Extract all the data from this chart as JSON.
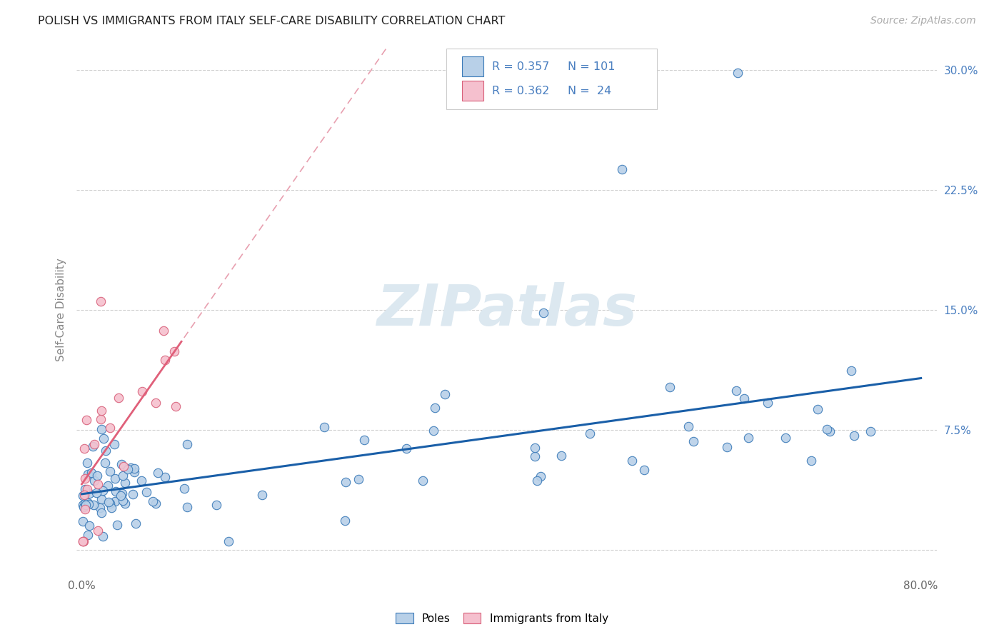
{
  "title": "POLISH VS IMMIGRANTS FROM ITALY SELF-CARE DISABILITY CORRELATION CHART",
  "source": "Source: ZipAtlas.com",
  "ylabel": "Self-Care Disability",
  "xlim": [
    0.0,
    0.8
  ],
  "ylim": [
    -0.015,
    0.315
  ],
  "xticks": [
    0.0,
    0.1,
    0.2,
    0.3,
    0.4,
    0.5,
    0.6,
    0.7,
    0.8
  ],
  "xticklabels": [
    "0.0%",
    "",
    "",
    "",
    "",
    "",
    "",
    "",
    "80.0%"
  ],
  "yticks": [
    0.0,
    0.075,
    0.15,
    0.225,
    0.3
  ],
  "yticklabels": [
    "",
    "7.5%",
    "15.0%",
    "22.5%",
    "30.0%"
  ],
  "poles_face_color": "#b8d0e8",
  "poles_edge_color": "#3a7ab8",
  "italy_face_color": "#f5c0ce",
  "italy_edge_color": "#d8607a",
  "poles_trend_color": "#1a5fa8",
  "italy_trend_solid_color": "#e0607a",
  "italy_trend_dash_color": "#e8a0b0",
  "legend_text_color": "#4a7fc0",
  "R_poles": 0.357,
  "N_poles": 101,
  "R_italy": 0.362,
  "N_italy": 24,
  "watermark_color": "#dce8f0",
  "background_color": "#ffffff",
  "grid_color": "#d0d0d0",
  "ytick_color": "#4a7fc0",
  "title_color": "#222222",
  "source_color": "#aaaaaa"
}
